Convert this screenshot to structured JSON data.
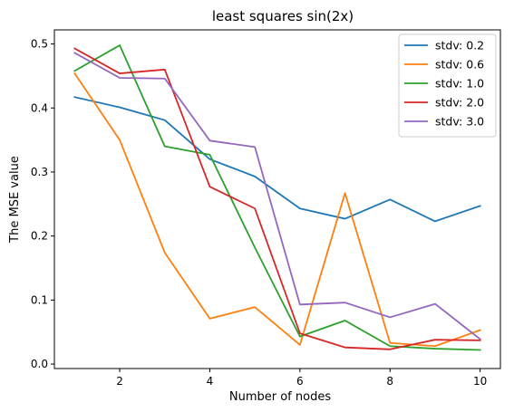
{
  "chart_data": {
    "type": "line",
    "title": "least squares sin(2x)",
    "xlabel": "Number of nodes",
    "ylabel": "The MSE value",
    "x": [
      1,
      2,
      3,
      4,
      5,
      6,
      7,
      8,
      9,
      10
    ],
    "xlim": [
      0.55,
      10.45
    ],
    "ylim": [
      -0.007,
      0.522
    ],
    "xticks": [
      2,
      4,
      6,
      8,
      10
    ],
    "xtick_labels": [
      "2",
      "4",
      "6",
      "8",
      "10"
    ],
    "yticks": [
      0.0,
      0.1,
      0.2,
      0.3,
      0.4,
      0.5
    ],
    "ytick_labels": [
      "0.0",
      "0.1",
      "0.2",
      "0.3",
      "0.4",
      "0.5"
    ],
    "grid": false,
    "legend_position": "top-right",
    "series": [
      {
        "name": "stdv: 0.2",
        "color": "#1f77b4",
        "values": [
          0.417,
          0.401,
          0.381,
          0.32,
          0.293,
          0.243,
          0.227,
          0.257,
          0.223,
          0.247
        ]
      },
      {
        "name": "stdv: 0.6",
        "color": "#ff7f0e",
        "values": [
          0.454,
          0.35,
          0.174,
          0.071,
          0.089,
          0.03,
          0.267,
          0.033,
          0.028,
          0.053
        ]
      },
      {
        "name": "stdv: 1.0",
        "color": "#2ca02c",
        "values": [
          0.458,
          0.498,
          0.34,
          0.327,
          0.182,
          0.043,
          0.068,
          0.028,
          0.024,
          0.022
        ]
      },
      {
        "name": "stdv: 2.0",
        "color": "#d62728",
        "values": [
          0.493,
          0.454,
          0.46,
          0.277,
          0.243,
          0.048,
          0.026,
          0.023,
          0.038,
          0.037
        ]
      },
      {
        "name": "stdv: 3.0",
        "color": "#9467bd",
        "values": [
          0.486,
          0.447,
          0.446,
          0.349,
          0.339,
          0.093,
          0.096,
          0.073,
          0.094,
          0.039
        ]
      }
    ]
  }
}
